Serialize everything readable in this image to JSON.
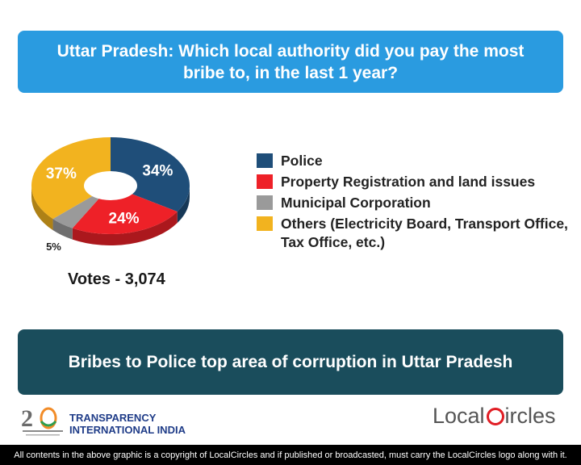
{
  "question": "Uttar Pradesh: Which local authority did you pay the most bribe to, in the last 1 year?",
  "conclusion": "Bribes to Police top area of corruption in Uttar Pradesh",
  "votes": "Votes - 3,074",
  "chart_data": {
    "type": "pie",
    "style": "donut-3d",
    "slices": [
      {
        "name": "Police",
        "value": 34,
        "label": "34%",
        "color": "#1f4e79"
      },
      {
        "name": "Property Registration and land issues",
        "value": 24,
        "label": "24%",
        "color": "#ee2128"
      },
      {
        "name": "Municipal Corporation",
        "value": 5,
        "label": "5%",
        "color": "#9a9a9a"
      },
      {
        "name": "Others (Electricity Board, Transport Office, Tax Office, etc.)",
        "value": 37,
        "label": "37%",
        "color": "#f2b31f"
      }
    ],
    "legend_placement": "right"
  },
  "branding": {
    "ti_line1": "TRANSPARENCY",
    "ti_line2": "INTERNATIONAL INDIA",
    "lc_left": "Local",
    "lc_right": "ircles"
  },
  "footer": "All contents in the above graphic is a copyright of LocalCircles and if published or broadcasted, must carry the LocalCircles logo along with it."
}
